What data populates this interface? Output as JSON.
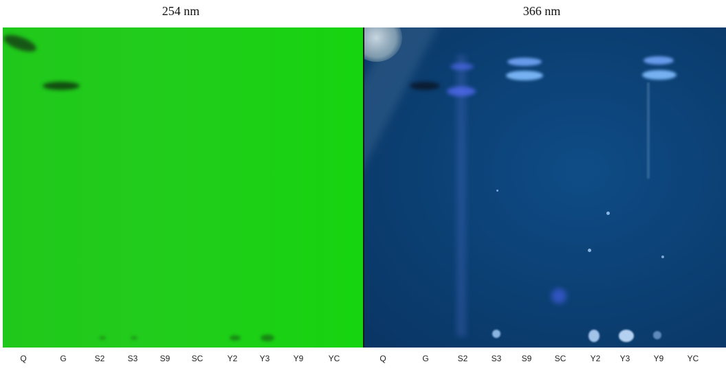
{
  "panels": [
    {
      "title": "254 nm"
    },
    {
      "title": "366 nm"
    }
  ],
  "lanes_254": [
    "Q",
    "G",
    "S2",
    "S3",
    "S9",
    "SC",
    "Y2",
    "Y3",
    "Y9",
    "YC"
  ],
  "lanes_366": [
    "Q",
    "G",
    "S2",
    "S3",
    "S9",
    "SC",
    "Y2",
    "Y3",
    "Y9",
    "YC"
  ],
  "colors": {
    "plate_254": "#1fc81a",
    "plate_366": "#0b3f72",
    "fluorescent_band": "#7fb4ff"
  }
}
